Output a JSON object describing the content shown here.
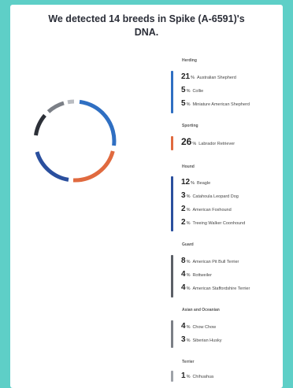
{
  "header": {
    "title_line1": "We detected 14 breeds in Spike (A-6591)'s",
    "title_line2": "DNA."
  },
  "colors": {
    "herding": "#2f6fc2",
    "sporting": "#e06a3f",
    "hound": "#2a4f9e",
    "guard": "#5b5f66",
    "asian_spitz": "#7b7f86",
    "terrier": "#9ea2a8"
  },
  "groups": {
    "herding": {
      "name": "Herding",
      "breeds": [
        {
          "pct": "21",
          "name": "Australian Shepherd"
        },
        {
          "pct": "5",
          "name": "Collie"
        },
        {
          "pct": "5",
          "name": "Miniature American Shepherd"
        }
      ]
    },
    "sporting": {
      "name": "Sporting",
      "breeds": [
        {
          "pct": "26",
          "name": "Labrador Retriever"
        }
      ]
    },
    "hound": {
      "name": "Hound",
      "breeds": [
        {
          "pct": "12",
          "name": "Beagle"
        },
        {
          "pct": "3",
          "name": "Catahoula Leopard Dog"
        },
        {
          "pct": "2",
          "name": "American Foxhound"
        },
        {
          "pct": "2",
          "name": "Treeing Walker Coonhound"
        }
      ]
    },
    "guard": {
      "name": "Guard",
      "breeds": [
        {
          "pct": "8",
          "name": "American Pit Bull Terrier"
        },
        {
          "pct": "4",
          "name": "Rottweiler"
        },
        {
          "pct": "4",
          "name": "American Staffordshire Terrier"
        }
      ]
    },
    "asian_spitz": {
      "name": "Asian and Oceanian",
      "breeds": [
        {
          "pct": "4",
          "name": "Chow Chow"
        },
        {
          "pct": "3",
          "name": "Siberian Husky"
        }
      ]
    },
    "terrier": {
      "name": "Terrier",
      "breeds": [
        {
          "pct": "1",
          "name": "Chihuahua"
        }
      ]
    }
  },
  "pct_sign": "%"
}
